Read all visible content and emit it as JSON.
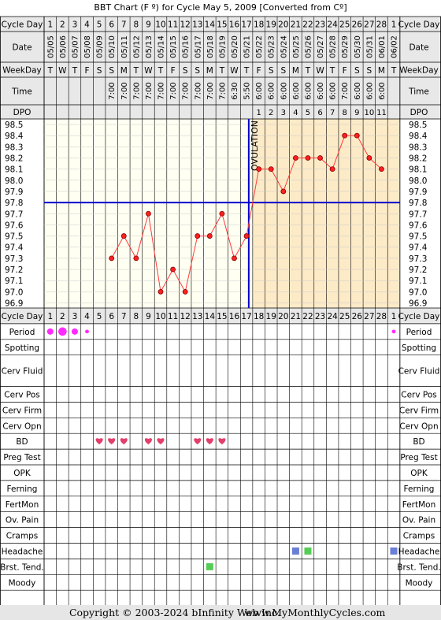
{
  "title": "BBT Chart (F º) for Cycle May 5, 2009  [Converted from Cº]",
  "row_labels": {
    "cycle_day": "Cycle Day",
    "date": "Date",
    "weekday": "WeekDay",
    "time": "Time",
    "dpo": "DPO"
  },
  "cycle_days": [
    "1",
    "2",
    "3",
    "4",
    "5",
    "6",
    "7",
    "8",
    "9",
    "10",
    "11",
    "12",
    "13",
    "14",
    "15",
    "16",
    "17",
    "18",
    "19",
    "20",
    "21",
    "22",
    "23",
    "24",
    "25",
    "26",
    "27",
    "28",
    "1"
  ],
  "dates": [
    "05/05",
    "05/06",
    "05/07",
    "05/08",
    "05/09",
    "05/10",
    "05/11",
    "05/12",
    "05/13",
    "05/14",
    "05/15",
    "05/16",
    "05/17",
    "05/18",
    "05/19",
    "05/20",
    "05/21",
    "05/22",
    "05/23",
    "05/24",
    "05/25",
    "05/26",
    "05/27",
    "05/28",
    "05/29",
    "05/30",
    "05/31",
    "06/01",
    "06/02"
  ],
  "weekdays": [
    "T",
    "W",
    "T",
    "F",
    "S",
    "S",
    "M",
    "T",
    "W",
    "T",
    "F",
    "S",
    "S",
    "M",
    "T",
    "W",
    "T",
    "F",
    "S",
    "S",
    "M",
    "T",
    "W",
    "T",
    "F",
    "S",
    "S",
    "M",
    "T"
  ],
  "times": [
    "",
    "",
    "",
    "",
    "",
    "7:00",
    "7:00",
    "7:00",
    "7:00",
    "7:00",
    "7:00",
    "7:00",
    "7:00",
    "7:00",
    "7:00",
    "6:30",
    "5:50",
    "6:00",
    "6:00",
    "6:00",
    "6:00",
    "6:00",
    "6:00",
    "6:00",
    "7:00",
    "6:00",
    "6:00",
    "6:00",
    ""
  ],
  "dpo": [
    "",
    "",
    "",
    "",
    "",
    "",
    "",
    "",
    "",
    "",
    "",
    "",
    "",
    "",
    "",
    "",
    "",
    "1",
    "2",
    "3",
    "4",
    "5",
    "6",
    "7",
    "8",
    "9",
    "10",
    "11",
    ""
  ],
  "ovulation_label": "OVULATION",
  "chart_data": {
    "type": "line",
    "title": "BBT Chart (F º) for Cycle May 5, 2009  [Converted from Cº]",
    "x": [
      6,
      7,
      8,
      9,
      10,
      11,
      12,
      13,
      14,
      15,
      16,
      17,
      18,
      19,
      20,
      21,
      22,
      23,
      24,
      25,
      26,
      27,
      28
    ],
    "y": [
      97.3,
      97.5,
      97.3,
      97.7,
      97.0,
      97.2,
      97.0,
      97.5,
      97.5,
      97.7,
      97.3,
      97.5,
      98.1,
      98.1,
      97.9,
      98.2,
      98.2,
      98.2,
      98.1,
      98.4,
      98.4,
      98.2,
      98.1
    ],
    "ylim": [
      96.9,
      98.5
    ],
    "y_ticks": [
      "98.5",
      "98.4",
      "98.3",
      "98.2",
      "98.1",
      "98.0",
      "97.9",
      "97.8",
      "97.7",
      "97.6",
      "97.5",
      "97.4",
      "97.3",
      "97.2",
      "97.1",
      "97.0",
      "96.9"
    ],
    "coverline": 97.8,
    "ovulation_day": 17,
    "luteal_start_day": 18,
    "grid": true,
    "colors": {
      "line": "#ff3b3b",
      "point": "#ff2020",
      "coverline": "#0000cc",
      "luteal_fill": "#fdebc8"
    }
  },
  "symptoms": {
    "labels": [
      "Period",
      "Spotting",
      "Cerv Fluid",
      "Cerv Pos",
      "Cerv Firm",
      "Cerv Opn",
      "BD",
      "Preg Test",
      "OPK",
      "Ferning",
      "FertMon",
      "Ov. Pain",
      "Cramps",
      "Headache",
      "Brst. Tend.",
      "Moody"
    ],
    "period": [
      {
        "day": 1,
        "size": "medium"
      },
      {
        "day": 2,
        "size": "large"
      },
      {
        "day": 3,
        "size": "medium"
      },
      {
        "day": 4,
        "size": "small"
      },
      {
        "day": 29,
        "size": "small"
      }
    ],
    "bd_days": [
      5,
      6,
      7,
      9,
      10,
      13,
      14,
      15
    ],
    "headache_marks": [
      {
        "day": 21,
        "color": "#6a7fd6"
      },
      {
        "day": 22,
        "color": "#55cc55"
      },
      {
        "day": 29,
        "color": "#6a7fd6"
      }
    ],
    "brst_tend_marks": [
      {
        "day": 14,
        "color": "#55cc55"
      }
    ]
  },
  "footer": {
    "copyright": "Copyright © 2003-2024 bInfinity Web Inc.",
    "site": "www.MyMonthlyCycles.com"
  },
  "colors": {
    "header_bg": "#e8e8e8",
    "chart_bg": "#fffff2",
    "footer_bg": "#e6e6e6",
    "heart": "#e0406a",
    "period": "#ff2aff"
  }
}
